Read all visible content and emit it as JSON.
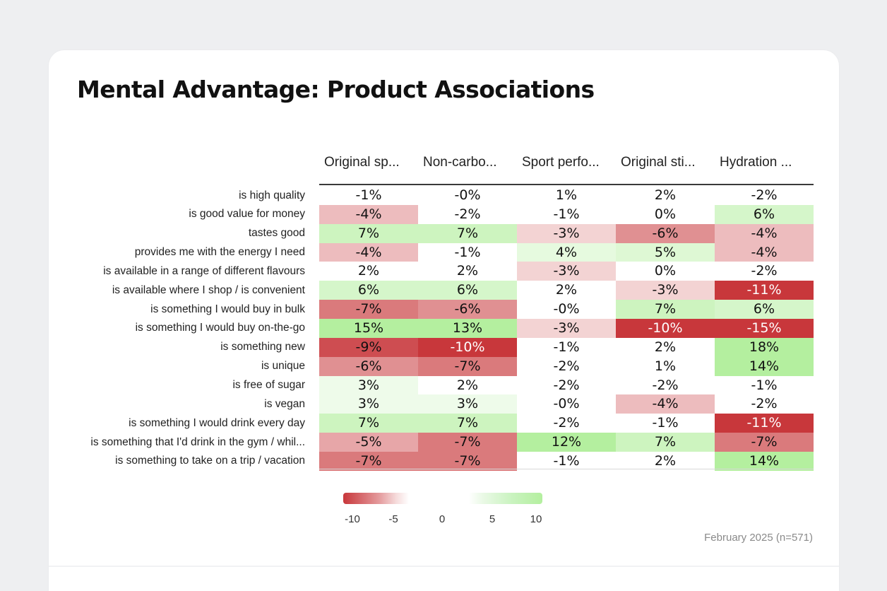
{
  "title": "Mental Advantage: Product Associations",
  "footnote": "February 2025 (n=571)",
  "colors": {
    "negative": "#c8373b",
    "positive": "#b4ef9f",
    "neutral": "#ffffff"
  },
  "chart_data": {
    "type": "heatmap",
    "title": "Mental Advantage: Product Associations",
    "columns": [
      "Original sp...",
      "Non-carbo...",
      "Sport perfo...",
      "Original sti...",
      "Hydration ..."
    ],
    "rows": [
      "is high quality",
      "is good value for money",
      "tastes good",
      "provides me with the energy I need",
      "is available in a range of different flavours",
      "is available where I shop / is convenient",
      "is something I would buy in bulk",
      "is something I would buy on-the-go",
      "is something new",
      "is unique",
      "is free of sugar",
      "is vegan",
      "is something I would drink every day",
      "is something that I'd drink in the gym / whil...",
      "is something to take on a trip / vacation"
    ],
    "values": [
      [
        -1,
        0,
        1,
        2,
        -2
      ],
      [
        -4,
        -2,
        -1,
        0,
        6
      ],
      [
        7,
        7,
        -3,
        -6,
        -4
      ],
      [
        -4,
        -1,
        4,
        5,
        -4
      ],
      [
        2,
        2,
        -3,
        0,
        -2
      ],
      [
        6,
        6,
        2,
        -3,
        -11
      ],
      [
        -7,
        -6,
        0,
        7,
        6
      ],
      [
        15,
        13,
        -3,
        -10,
        -15
      ],
      [
        -9,
        -10,
        -1,
        2,
        18
      ],
      [
        -6,
        -7,
        -2,
        1,
        14
      ],
      [
        3,
        2,
        -2,
        -2,
        -1
      ],
      [
        3,
        3,
        0,
        -4,
        -2
      ],
      [
        7,
        7,
        -2,
        -1,
        -11
      ],
      [
        -5,
        -7,
        12,
        7,
        -7
      ],
      [
        -7,
        -7,
        -1,
        2,
        14
      ]
    ],
    "labels": [
      [
        "-1%",
        "-0%",
        "1%",
        "2%",
        "-2%"
      ],
      [
        "-4%",
        "-2%",
        "-1%",
        "0%",
        "6%"
      ],
      [
        "7%",
        "7%",
        "-3%",
        "-6%",
        "-4%"
      ],
      [
        "-4%",
        "-1%",
        "4%",
        "5%",
        "-4%"
      ],
      [
        "2%",
        "2%",
        "-3%",
        "0%",
        "-2%"
      ],
      [
        "6%",
        "6%",
        "2%",
        "-3%",
        "-11%"
      ],
      [
        "-7%",
        "-6%",
        "-0%",
        "7%",
        "6%"
      ],
      [
        "15%",
        "13%",
        "-3%",
        "-10%",
        "-15%"
      ],
      [
        "-9%",
        "-10%",
        "-1%",
        "2%",
        "18%"
      ],
      [
        "-6%",
        "-7%",
        "-2%",
        "1%",
        "14%"
      ],
      [
        "3%",
        "2%",
        "-2%",
        "-2%",
        "-1%"
      ],
      [
        "3%",
        "3%",
        "-0%",
        "-4%",
        "-2%"
      ],
      [
        "7%",
        "7%",
        "-2%",
        "-1%",
        "-11%"
      ],
      [
        "-5%",
        "-7%",
        "12%",
        "7%",
        "-7%"
      ],
      [
        "-7%",
        "-7%",
        "-1%",
        "2%",
        "14%"
      ]
    ],
    "legend": {
      "range": [
        -10,
        10
      ],
      "ticks": [
        "-10",
        "-5",
        "0",
        "5",
        "10"
      ]
    }
  }
}
